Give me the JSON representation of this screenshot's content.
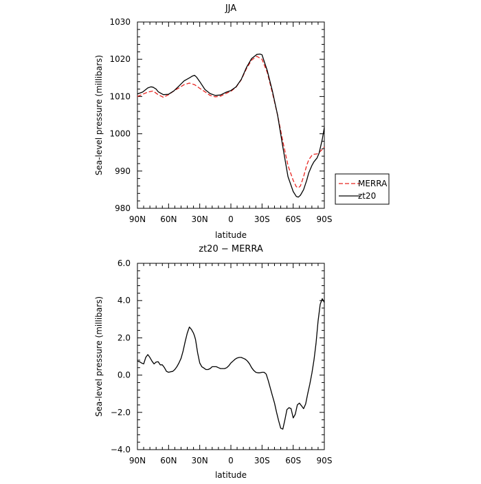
{
  "chart_data": [
    {
      "type": "line",
      "title": "JJA",
      "xlabel": "latitude",
      "ylabel": "Sea-level pressure (millibars)",
      "xlim": [
        90,
        -90
      ],
      "ylim": [
        980,
        1030
      ],
      "xticks": [
        90,
        60,
        30,
        0,
        -30,
        -60,
        -90
      ],
      "xtick_labels": [
        "90N",
        "60N",
        "30N",
        "0",
        "30S",
        "60S",
        "90S"
      ],
      "yticks": [
        980,
        990,
        1000,
        1010,
        1020,
        1030
      ],
      "ytick_labels": [
        "980",
        "990",
        "1000",
        "1010",
        "1020",
        "1030"
      ],
      "legend_position": "right",
      "series": [
        {
          "name": "MERRA",
          "color": "#e8231f",
          "dash": "dashed",
          "x": [
            90,
            85,
            80,
            75,
            70,
            65,
            60,
            55,
            50,
            45,
            40,
            35,
            30,
            25,
            20,
            15,
            10,
            5,
            0,
            -5,
            -10,
            -15,
            -20,
            -25,
            -30,
            -35,
            -40,
            -45,
            -50,
            -55,
            -60,
            -63,
            -65,
            -67,
            -70,
            -73,
            -75,
            -78,
            -80,
            -83,
            -85,
            -88,
            -90
          ],
          "values": [
            1010.0,
            1010.6,
            1011.2,
            1011.5,
            1010.5,
            1009.8,
            1010.5,
            1011.5,
            1012.3,
            1013.2,
            1013.6,
            1013.2,
            1012.2,
            1011.3,
            1010.3,
            1009.9,
            1010.1,
            1010.8,
            1011.4,
            1012.5,
            1014.5,
            1017.5,
            1019.8,
            1020.8,
            1020.0,
            1016.5,
            1011.0,
            1005.0,
            998.0,
            991.5,
            987.5,
            985.8,
            985.5,
            986.0,
            988.5,
            991.5,
            993.0,
            994.2,
            994.5,
            994.6,
            995.0,
            995.8,
            996.5
          ]
        },
        {
          "name": "zt20",
          "color": "#000000",
          "dash": "solid",
          "x": [
            90,
            85,
            80,
            77,
            75,
            72,
            70,
            67,
            65,
            60,
            55,
            50,
            45,
            40,
            37,
            35,
            33,
            30,
            25,
            20,
            15,
            10,
            5,
            0,
            -5,
            -10,
            -15,
            -20,
            -25,
            -28,
            -30,
            -35,
            -40,
            -45,
            -50,
            -55,
            -60,
            -63,
            -65,
            -67,
            -70,
            -73,
            -75,
            -78,
            -80,
            -83,
            -85,
            -88,
            -90
          ],
          "values": [
            1010.7,
            1011.2,
            1012.3,
            1012.6,
            1012.5,
            1012.0,
            1011.3,
            1010.8,
            1010.5,
            1010.6,
            1011.5,
            1012.8,
            1014.2,
            1015.0,
            1015.5,
            1015.7,
            1015.2,
            1014.0,
            1011.9,
            1010.8,
            1010.3,
            1010.4,
            1011.1,
            1011.6,
            1012.6,
            1014.6,
            1017.8,
            1020.2,
            1021.3,
            1021.4,
            1021.2,
            1017.0,
            1011.5,
            1005.0,
            996.5,
            988.5,
            984.5,
            983.2,
            983.0,
            983.5,
            985.0,
            987.5,
            989.5,
            991.5,
            992.5,
            993.5,
            994.8,
            998.5,
            1001.7
          ]
        }
      ]
    },
    {
      "type": "line",
      "title": "zt20 − MERRA",
      "xlabel": "latitude",
      "ylabel": "Sea-level pressure (millibars)",
      "xlim": [
        90,
        -90
      ],
      "ylim": [
        -4.0,
        6.0
      ],
      "xticks": [
        90,
        60,
        30,
        0,
        -30,
        -60,
        -90
      ],
      "xtick_labels": [
        "90N",
        "60N",
        "30N",
        "0",
        "30S",
        "60S",
        "90S"
      ],
      "yticks": [
        -4.0,
        -2.0,
        0.0,
        2.0,
        4.0,
        6.0
      ],
      "ytick_labels": [
        "−4.0",
        "−2.0",
        "0.0",
        "2.0",
        "4.0",
        "6.0"
      ],
      "series": [
        {
          "color": "#000000",
          "dash": "solid",
          "x": [
            90,
            88,
            86,
            84,
            82,
            80,
            78,
            76,
            74,
            72,
            70,
            68,
            66,
            64,
            62,
            60,
            58,
            56,
            54,
            52,
            50,
            48,
            46,
            44,
            42,
            40,
            38,
            36,
            35,
            34,
            32,
            30,
            28,
            26,
            24,
            22,
            20,
            18,
            16,
            14,
            12,
            10,
            8,
            6,
            4,
            2,
            0,
            -2,
            -4,
            -6,
            -8,
            -10,
            -12,
            -14,
            -16,
            -18,
            -20,
            -22,
            -24,
            -26,
            -28,
            -30,
            -32,
            -34,
            -36,
            -38,
            -40,
            -42,
            -44,
            -46,
            -48,
            -50,
            -52,
            -54,
            -56,
            -58,
            -60,
            -62,
            -64,
            -66,
            -68,
            -70,
            -72,
            -74,
            -76,
            -78,
            -80,
            -82,
            -84,
            -86,
            -88,
            -89,
            -90
          ],
          "values": [
            0.75,
            0.72,
            0.65,
            0.6,
            0.95,
            1.1,
            0.95,
            0.75,
            0.6,
            0.7,
            0.72,
            0.55,
            0.55,
            0.4,
            0.2,
            0.15,
            0.18,
            0.2,
            0.3,
            0.45,
            0.65,
            0.9,
            1.3,
            1.8,
            2.25,
            2.58,
            2.45,
            2.25,
            2.1,
            1.9,
            1.2,
            0.65,
            0.45,
            0.38,
            0.3,
            0.3,
            0.35,
            0.45,
            0.45,
            0.45,
            0.4,
            0.35,
            0.35,
            0.35,
            0.4,
            0.5,
            0.65,
            0.75,
            0.85,
            0.92,
            0.95,
            0.95,
            0.9,
            0.85,
            0.75,
            0.6,
            0.4,
            0.25,
            0.15,
            0.12,
            0.12,
            0.15,
            0.15,
            0.05,
            -0.3,
            -0.7,
            -1.1,
            -1.5,
            -2.0,
            -2.45,
            -2.85,
            -2.9,
            -2.4,
            -1.85,
            -1.75,
            -1.8,
            -2.3,
            -2.1,
            -1.6,
            -1.5,
            -1.65,
            -1.8,
            -1.55,
            -1.0,
            -0.5,
            0.1,
            0.8,
            1.7,
            2.9,
            3.8,
            4.1,
            4.0,
            3.9
          ]
        }
      ]
    }
  ]
}
